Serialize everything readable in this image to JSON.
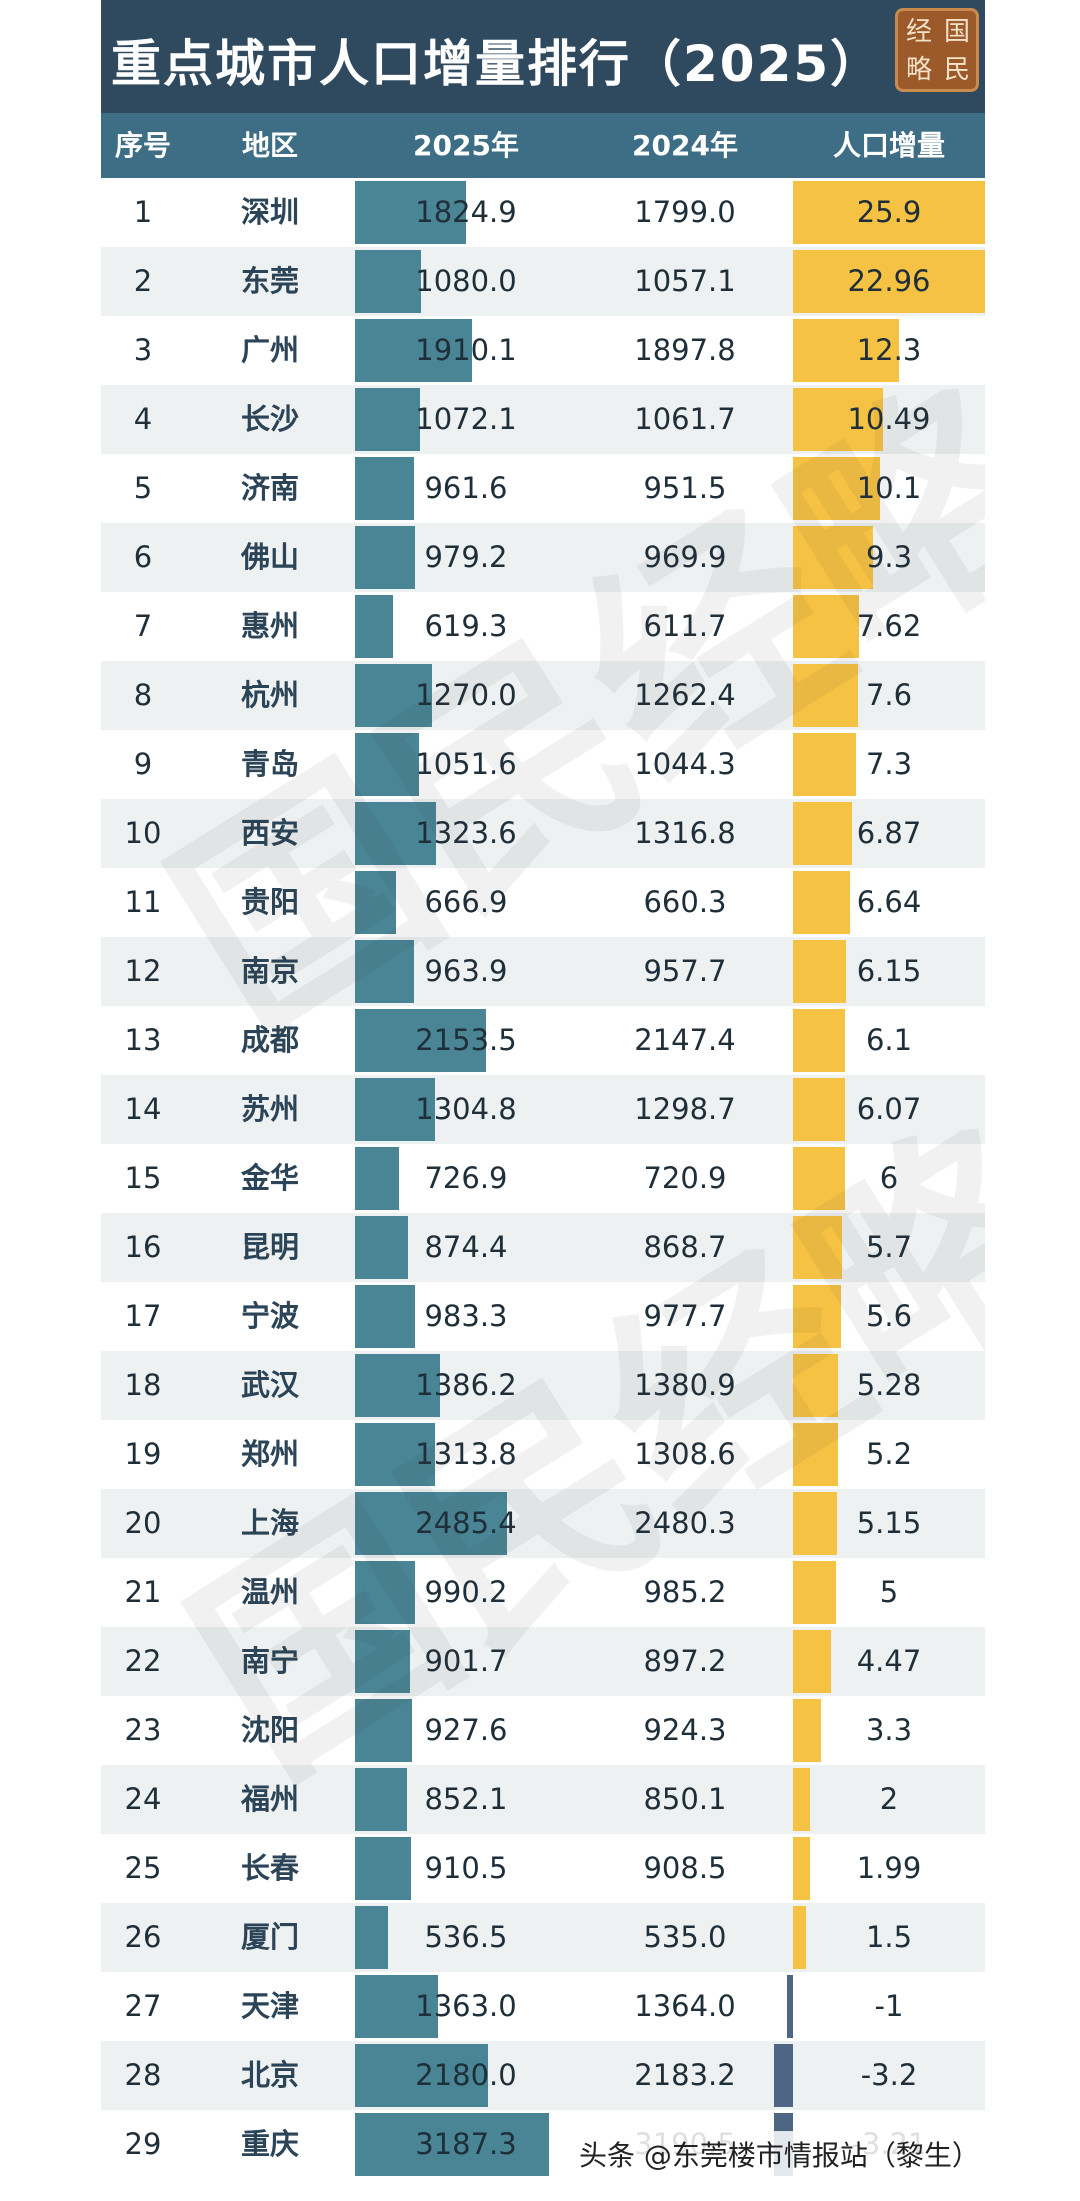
{
  "title": "重点城市人口增量排行（2025）",
  "logo": {
    "chars": [
      "经",
      "国",
      "略",
      "民"
    ]
  },
  "columns": {
    "rank": "序号",
    "region": "地区",
    "y2025": "2025年",
    "y2024": "2024年",
    "increase": "人口增量"
  },
  "credit": "头条 @东莞楼市情报站（黎生）",
  "colors": {
    "title_bg": "#2f4a5f",
    "header_bg": "#3d6e86",
    "bar_2025": "#4a8595",
    "increase_positive": "#f6c244",
    "increase_negative": "#4c6684",
    "row_alt": "#eef1f1"
  },
  "chart_data": {
    "type": "table",
    "columns": [
      "序号",
      "地区",
      "2025年",
      "2024年",
      "人口增量"
    ],
    "rows": [
      {
        "rank": "1",
        "city": "深圳",
        "y2025": "1824.9",
        "y2024": "1799.0",
        "inc": "25.9"
      },
      {
        "rank": "2",
        "city": "东莞",
        "y2025": "1080.0",
        "y2024": "1057.1",
        "inc": "22.96"
      },
      {
        "rank": "3",
        "city": "广州",
        "y2025": "1910.1",
        "y2024": "1897.8",
        "inc": "12.3"
      },
      {
        "rank": "4",
        "city": "长沙",
        "y2025": "1072.1",
        "y2024": "1061.7",
        "inc": "10.49"
      },
      {
        "rank": "5",
        "city": "济南",
        "y2025": "961.6",
        "y2024": "951.5",
        "inc": "10.1"
      },
      {
        "rank": "6",
        "city": "佛山",
        "y2025": "979.2",
        "y2024": "969.9",
        "inc": "9.3"
      },
      {
        "rank": "7",
        "city": "惠州",
        "y2025": "619.3",
        "y2024": "611.7",
        "inc": "7.62"
      },
      {
        "rank": "8",
        "city": "杭州",
        "y2025": "1270.0",
        "y2024": "1262.4",
        "inc": "7.6"
      },
      {
        "rank": "9",
        "city": "青岛",
        "y2025": "1051.6",
        "y2024": "1044.3",
        "inc": "7.3"
      },
      {
        "rank": "10",
        "city": "西安",
        "y2025": "1323.6",
        "y2024": "1316.8",
        "inc": "6.87"
      },
      {
        "rank": "11",
        "city": "贵阳",
        "y2025": "666.9",
        "y2024": "660.3",
        "inc": "6.64"
      },
      {
        "rank": "12",
        "city": "南京",
        "y2025": "963.9",
        "y2024": "957.7",
        "inc": "6.15"
      },
      {
        "rank": "13",
        "city": "成都",
        "y2025": "2153.5",
        "y2024": "2147.4",
        "inc": "6.1"
      },
      {
        "rank": "14",
        "city": "苏州",
        "y2025": "1304.8",
        "y2024": "1298.7",
        "inc": "6.07"
      },
      {
        "rank": "15",
        "city": "金华",
        "y2025": "726.9",
        "y2024": "720.9",
        "inc": "6"
      },
      {
        "rank": "16",
        "city": "昆明",
        "y2025": "874.4",
        "y2024": "868.7",
        "inc": "5.7"
      },
      {
        "rank": "17",
        "city": "宁波",
        "y2025": "983.3",
        "y2024": "977.7",
        "inc": "5.6"
      },
      {
        "rank": "18",
        "city": "武汉",
        "y2025": "1386.2",
        "y2024": "1380.9",
        "inc": "5.28"
      },
      {
        "rank": "19",
        "city": "郑州",
        "y2025": "1313.8",
        "y2024": "1308.6",
        "inc": "5.2"
      },
      {
        "rank": "20",
        "city": "上海",
        "y2025": "2485.4",
        "y2024": "2480.3",
        "inc": "5.15"
      },
      {
        "rank": "21",
        "city": "温州",
        "y2025": "990.2",
        "y2024": "985.2",
        "inc": "5"
      },
      {
        "rank": "22",
        "city": "南宁",
        "y2025": "901.7",
        "y2024": "897.2",
        "inc": "4.47"
      },
      {
        "rank": "23",
        "city": "沈阳",
        "y2025": "927.6",
        "y2024": "924.3",
        "inc": "3.3"
      },
      {
        "rank": "24",
        "city": "福州",
        "y2025": "852.1",
        "y2024": "850.1",
        "inc": "2"
      },
      {
        "rank": "25",
        "city": "长春",
        "y2025": "910.5",
        "y2024": "908.5",
        "inc": "1.99"
      },
      {
        "rank": "26",
        "city": "厦门",
        "y2025": "536.5",
        "y2024": "535.0",
        "inc": "1.5"
      },
      {
        "rank": "27",
        "city": "天津",
        "y2025": "1363.0",
        "y2024": "1364.0",
        "inc": "-1"
      },
      {
        "rank": "28",
        "city": "北京",
        "y2025": "2180.0",
        "y2024": "2183.2",
        "inc": "-3.2"
      },
      {
        "rank": "29",
        "city": "重庆",
        "y2025": "3187.3",
        "y2024": "3190.5",
        "inc": "-3.21"
      }
    ]
  }
}
